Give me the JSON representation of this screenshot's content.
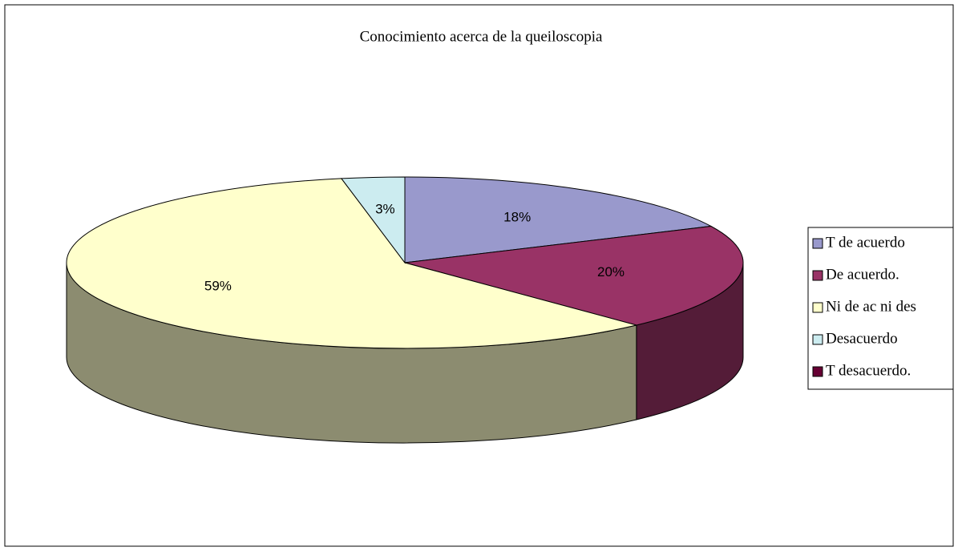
{
  "chart_data": {
    "type": "pie3d",
    "title": "Conocimiento acerca de la queiloscopia",
    "categories": [
      "T de acuerdo",
      "De acuerdo.",
      "Ni de ac ni des",
      "Desacuerdo",
      "T desacuerdo."
    ],
    "values": [
      18,
      20,
      59,
      3,
      0
    ],
    "value_labels": [
      "18%",
      "20%",
      "59%",
      "3%",
      null
    ],
    "colors": [
      "#9999cc",
      "#993366",
      "#ffffcc",
      "#ccecf0",
      "#660033"
    ],
    "legend": "right"
  }
}
